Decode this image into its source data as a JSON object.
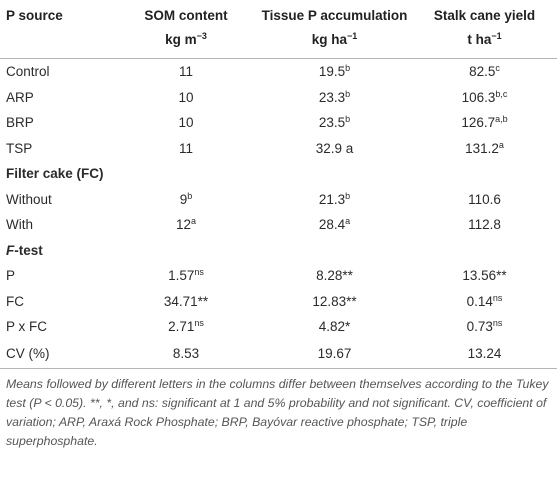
{
  "header": {
    "col1": "P source",
    "col2_title": "SOM content",
    "col2_unit": "kg m",
    "col2_unit_sup": "−3",
    "col3_title": "Tissue P accumulation",
    "col3_unit": "kg ha",
    "col3_unit_sup": "−1",
    "col4_title": "Stalk cane yield",
    "col4_unit": "t ha",
    "col4_unit_sup": "−1"
  },
  "rows": {
    "control": {
      "label": "Control",
      "som": "11",
      "som_sup": "",
      "tissue": "19.5",
      "tissue_sup": "b",
      "yield": "82.5",
      "yield_sup": "c"
    },
    "arp": {
      "label": "ARP",
      "som": "10",
      "som_sup": "",
      "tissue": "23.3",
      "tissue_sup": "b",
      "yield": "106.3",
      "yield_sup": "b,c"
    },
    "brp": {
      "label": "BRP",
      "som": "10",
      "som_sup": "",
      "tissue": "23.5",
      "tissue_sup": "b",
      "yield": "126.7",
      "yield_sup": "a,b"
    },
    "tsp": {
      "label": "TSP",
      "som": "11",
      "som_sup": "",
      "tissue": "32.9 a",
      "tissue_sup": "",
      "yield": "131.2",
      "yield_sup": "a"
    },
    "without": {
      "label": "Without",
      "som": "9",
      "som_sup": "b",
      "tissue": "21.3",
      "tissue_sup": "b",
      "yield": "110.6",
      "yield_sup": ""
    },
    "with": {
      "label": "With",
      "som": "12",
      "som_sup": "a",
      "tissue": "28.4",
      "tissue_sup": "a",
      "yield": "112.8",
      "yield_sup": ""
    },
    "p": {
      "label": "P",
      "som": "1.57",
      "som_sup": "ns",
      "tissue": "8.28**",
      "tissue_sup": "",
      "yield": "13.56**",
      "yield_sup": ""
    },
    "fc": {
      "label": "FC",
      "som": "34.71**",
      "som_sup": "",
      "tissue": "12.83**",
      "tissue_sup": "",
      "yield": "0.14",
      "yield_sup": "ns"
    },
    "pxfc": {
      "label": "P x FC",
      "som": "2.71",
      "som_sup": "ns",
      "tissue": "4.82*",
      "tissue_sup": "",
      "yield": "0.73",
      "yield_sup": "ns"
    },
    "cv": {
      "label": "CV (%)",
      "som": "8.53",
      "som_sup": "",
      "tissue": "19.67",
      "tissue_sup": "",
      "yield": "13.24",
      "yield_sup": ""
    }
  },
  "sections": {
    "filter_cake": "Filter cake (FC)",
    "ftest_italic": "F",
    "ftest_rest": "-test"
  },
  "footnote": "Means followed by different letters in the columns differ between themselves according to the Tukey test (P < 0.05). **, *, and ns: significant at 1 and 5% probability and not significant. CV, coefficient of variation; ARP, Araxá Rock Phosphate; BRP, Bayóvar reactive phosphate; TSP, triple superphosphate."
}
